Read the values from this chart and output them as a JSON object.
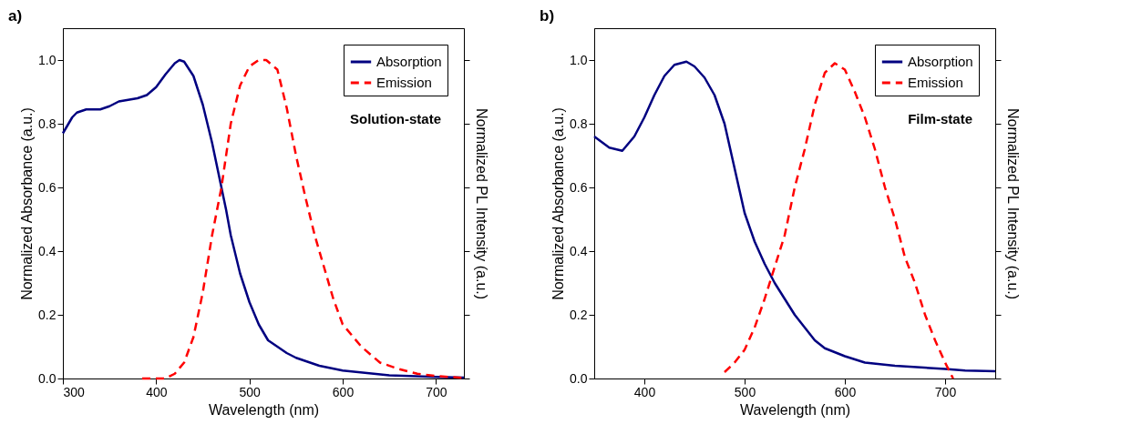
{
  "chart_data": [
    {
      "type": "line",
      "title": "a)",
      "xlabel": "Wavelength (nm)",
      "ylabel": "Normalized Absorbance (a.u.)",
      "y2label": "Normalized PL Intensity (a.u.)",
      "annotations": [
        "Solution-state"
      ],
      "xlim": [
        300,
        730
      ],
      "xticks": [
        300,
        400,
        500,
        600,
        700
      ],
      "ylim": [
        0,
        1.1
      ],
      "yticks": [
        {
          "value": 0,
          "label": "0.0"
        },
        {
          "value": 0.2,
          "label": "0.2"
        },
        {
          "value": 0.4,
          "label": "0.4"
        },
        {
          "value": 0.6,
          "label": "0.6"
        },
        {
          "value": 0.8,
          "label": "0.8"
        },
        {
          "value": 1.0,
          "label": "1.0"
        }
      ],
      "legend": "top right",
      "grid": false,
      "series": [
        {
          "name": "Absorption",
          "color": "#000080",
          "line_style": "solid",
          "x": [
            300,
            310,
            315,
            325,
            340,
            350,
            360,
            370,
            380,
            390,
            400,
            410,
            420,
            425,
            430,
            440,
            450,
            460,
            470,
            475,
            480,
            490,
            500,
            510,
            520,
            530,
            540,
            550,
            575,
            600,
            650,
            700,
            730
          ],
          "values": [
            0.77,
            0.82,
            0.835,
            0.845,
            0.845,
            0.855,
            0.87,
            0.875,
            0.88,
            0.89,
            0.915,
            0.955,
            0.99,
            1.0,
            0.995,
            0.95,
            0.86,
            0.74,
            0.6,
            0.53,
            0.45,
            0.33,
            0.24,
            0.17,
            0.12,
            0.1,
            0.08,
            0.065,
            0.04,
            0.025,
            0.01,
            0.005,
            0.003
          ]
        },
        {
          "name": "Emission",
          "color": "#ff0000",
          "line_style": "dashed",
          "x": [
            385,
            395,
            410,
            420,
            430,
            440,
            450,
            460,
            470,
            480,
            490,
            500,
            510,
            518,
            530,
            540,
            550,
            560,
            570,
            580,
            590,
            600,
            620,
            640,
            660,
            680,
            700,
            728
          ],
          "values": [
            0,
            0,
            0,
            0.015,
            0.05,
            0.13,
            0.27,
            0.45,
            0.6,
            0.8,
            0.92,
            0.98,
            1.0,
            1.0,
            0.97,
            0.85,
            0.7,
            0.57,
            0.45,
            0.35,
            0.25,
            0.17,
            0.1,
            0.05,
            0.03,
            0.015,
            0.008,
            0.002
          ]
        }
      ]
    },
    {
      "type": "line",
      "title": "b)",
      "xlabel": "Wavelength (nm)",
      "ylabel": "Normalized Absorbance (a.u.)",
      "y2label": "Normalized PL Intensity (a.u.)",
      "annotations": [
        "Film-state"
      ],
      "xlim": [
        350,
        750
      ],
      "xticks": [
        400,
        500,
        600,
        700
      ],
      "ylim": [
        0,
        1.1
      ],
      "yticks": [
        {
          "value": 0,
          "label": "0.0"
        },
        {
          "value": 0.2,
          "label": "0.2"
        },
        {
          "value": 0.4,
          "label": "0.4"
        },
        {
          "value": 0.6,
          "label": "0.6"
        },
        {
          "value": 0.8,
          "label": "0.8"
        },
        {
          "value": 1.0,
          "label": "1.0"
        }
      ],
      "legend": "top right",
      "grid": false,
      "series": [
        {
          "name": "Absorption",
          "color": "#000080",
          "line_style": "solid",
          "x": [
            350,
            365,
            378,
            390,
            400,
            410,
            420,
            430,
            442,
            450,
            460,
            470,
            480,
            490,
            500,
            510,
            520,
            530,
            540,
            550,
            560,
            570,
            580,
            600,
            620,
            650,
            700,
            720,
            750
          ],
          "values": [
            0.76,
            0.725,
            0.715,
            0.76,
            0.82,
            0.89,
            0.95,
            0.985,
            0.995,
            0.98,
            0.945,
            0.89,
            0.8,
            0.66,
            0.52,
            0.43,
            0.36,
            0.3,
            0.25,
            0.2,
            0.16,
            0.12,
            0.095,
            0.07,
            0.05,
            0.04,
            0.03,
            0.025,
            0.023
          ]
        },
        {
          "name": "Emission",
          "color": "#ff0000",
          "line_style": "dashed",
          "x": [
            480,
            490,
            500,
            510,
            520,
            530,
            540,
            550,
            560,
            570,
            580,
            590,
            600,
            610,
            620,
            630,
            640,
            650,
            660,
            670,
            680,
            690,
            700,
            708
          ],
          "values": [
            0.02,
            0.05,
            0.09,
            0.16,
            0.25,
            0.35,
            0.45,
            0.6,
            0.72,
            0.86,
            0.96,
            0.99,
            0.97,
            0.9,
            0.82,
            0.72,
            0.6,
            0.5,
            0.38,
            0.3,
            0.2,
            0.12,
            0.05,
            0.0
          ]
        }
      ]
    }
  ]
}
